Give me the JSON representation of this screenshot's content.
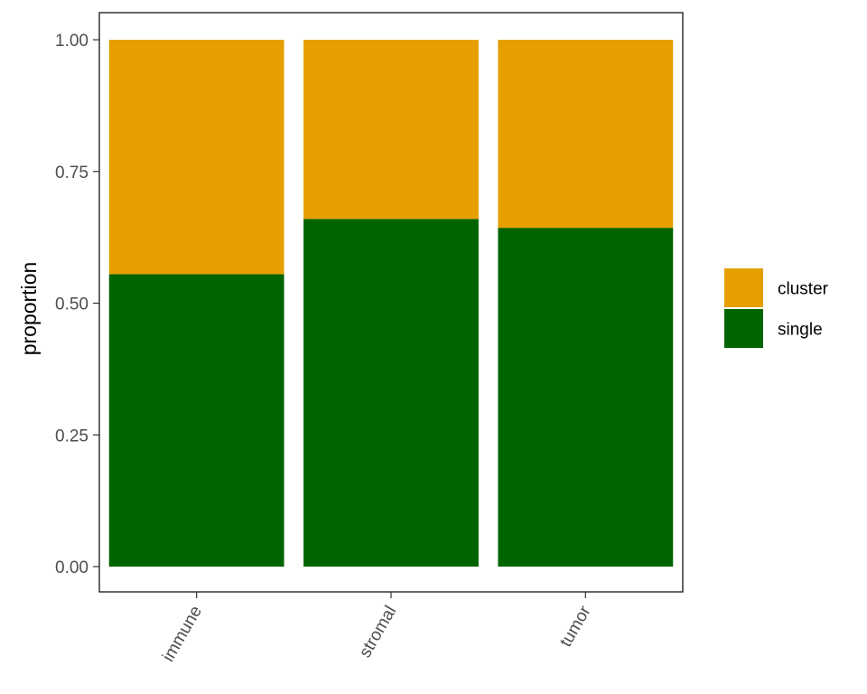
{
  "chart_data": {
    "type": "bar",
    "stacked": true,
    "categories": [
      "immune",
      "stromal",
      "tumor"
    ],
    "series": [
      {
        "name": "single",
        "values": [
          0.555,
          0.66,
          0.643
        ],
        "color": "#006400"
      },
      {
        "name": "cluster",
        "values": [
          0.445,
          0.34,
          0.357
        ],
        "color": "#E69F00"
      }
    ],
    "xlabel": "",
    "ylabel": "proportion",
    "ylim": [
      0,
      1
    ],
    "yticks": [
      0,
      0.25,
      0.5,
      0.75,
      1
    ],
    "ytick_labels": [
      "0.00",
      "0.25",
      "0.50",
      "0.75",
      "1.00"
    ],
    "x_tick_rotation_deg": -60,
    "grid": false,
    "legend": {
      "placement": "right",
      "order": [
        "cluster",
        "single"
      ]
    }
  }
}
